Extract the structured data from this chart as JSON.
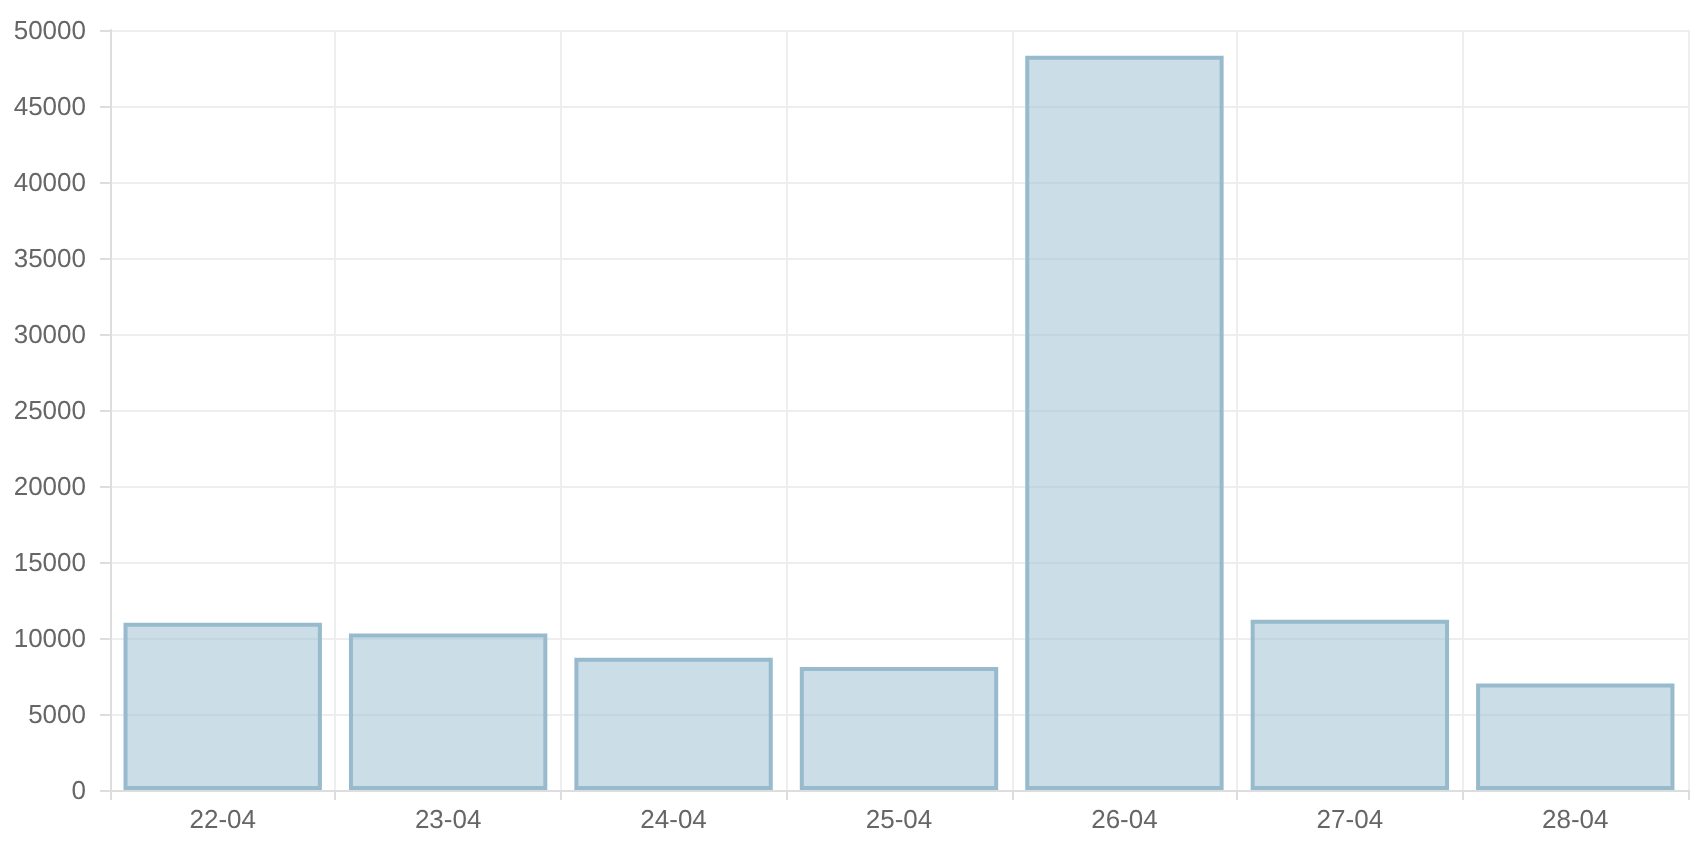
{
  "chart_data": {
    "type": "bar",
    "categories": [
      "22-04",
      "23-04",
      "24-04",
      "25-04",
      "26-04",
      "27-04",
      "28-04"
    ],
    "values": [
      11000,
      10300,
      8700,
      8100,
      48300,
      11200,
      7000
    ],
    "color": "#97bbcd",
    "ylim": [
      0,
      50000
    ],
    "yticks": [
      0,
      5000,
      10000,
      15000,
      20000,
      25000,
      30000,
      35000,
      40000,
      45000,
      50000
    ],
    "grid": true
  }
}
